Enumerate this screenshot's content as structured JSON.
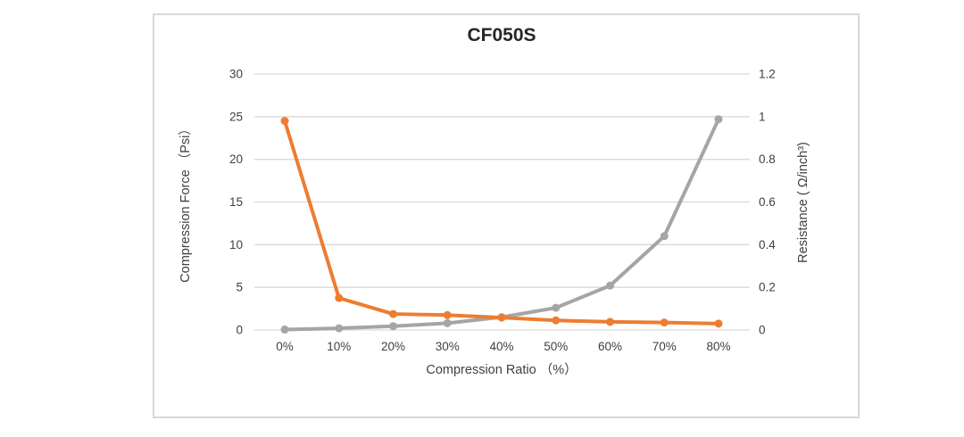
{
  "chart": {
    "title": "CF050S",
    "x_axis_title": "Compression Ratio （%）",
    "left_axis_title": "Compression Force （Psi）",
    "right_axis_title": "Resistance ( Ω/inch³)"
  },
  "chart_data": {
    "type": "line",
    "title": "CF050S",
    "categories": [
      "0%",
      "10%",
      "20%",
      "30%",
      "40%",
      "50%",
      "60%",
      "70%",
      "80%"
    ],
    "series": [
      {
        "name": "Compression Force",
        "axis": "left",
        "color": "#a5a5a5",
        "values": [
          0.05,
          0.2,
          0.45,
          0.8,
          1.5,
          2.6,
          5.2,
          11,
          24.7
        ]
      },
      {
        "name": "Resistance",
        "axis": "right",
        "color": "#ed7d31",
        "values": [
          0.98,
          0.15,
          0.075,
          0.07,
          0.058,
          0.045,
          0.038,
          0.035,
          0.03
        ]
      }
    ],
    "xlabel": "Compression Ratio （%）",
    "ylabel_left": "Compression Force （Psi）",
    "ylabel_right": "Resistance ( Ω/inch³)",
    "ylim_left": [
      0,
      30
    ],
    "ylim_right": [
      0,
      1.2
    ],
    "left_ticks": [
      "30",
      "25",
      "20",
      "15",
      "10",
      "5",
      "0"
    ],
    "right_ticks": [
      "1.2",
      "1",
      "0.8",
      "0.6",
      "0.4",
      "0.2",
      "0"
    ],
    "grid": true,
    "legend_position": "none",
    "gridline_color": "#d9d9d9",
    "tick_color": "#404040",
    "title_color": "#262626"
  }
}
